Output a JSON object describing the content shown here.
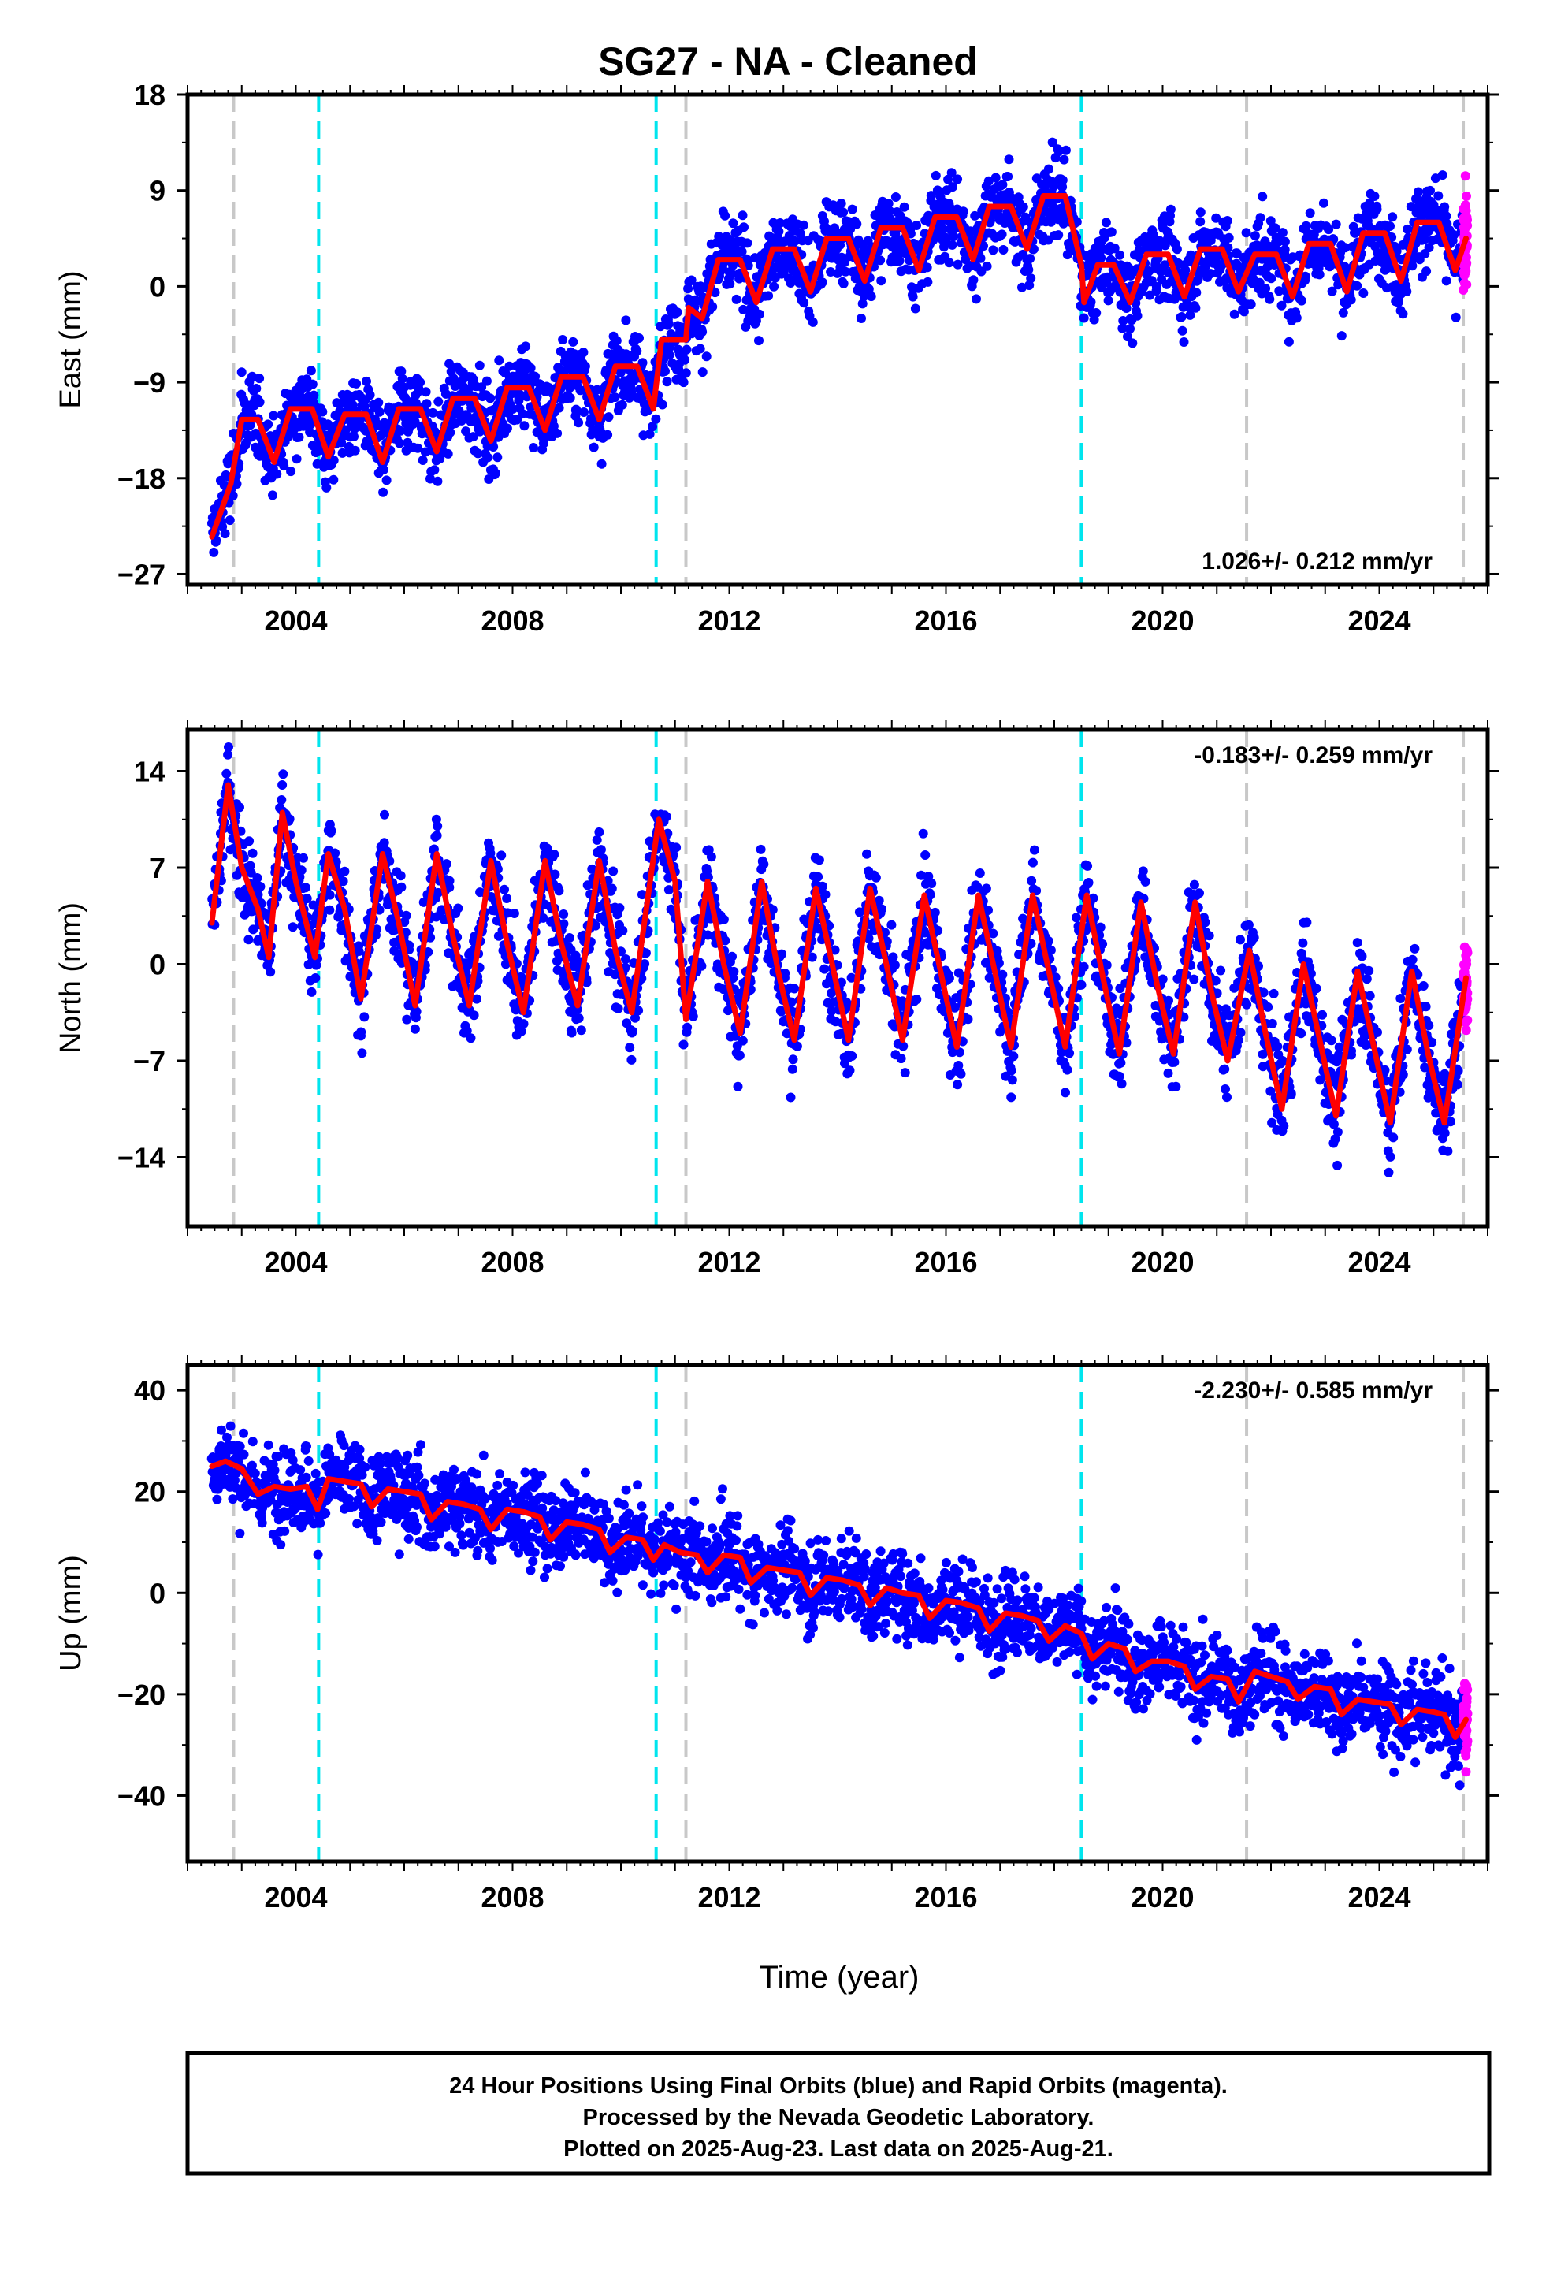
{
  "title": "SG27  - NA - Cleaned",
  "colors": {
    "final_orbits": "#0000ff",
    "rapid_orbits": "#ff00ff",
    "model": "#ff0000",
    "equipment_change": "#c8c8c8",
    "earthquake": "#00e5ee"
  },
  "chart_data": [
    {
      "type": "scatter",
      "ylabel": "East (mm)",
      "xlim": [
        2002.0,
        2026.0
      ],
      "ylim": [
        -28,
        18
      ],
      "yticks": [
        -27,
        -18,
        -9,
        0,
        9,
        18
      ],
      "xticks": [
        2004,
        2008,
        2012,
        2016,
        2020,
        2024
      ],
      "rate_text": "1.026+/- 0.212 mm/yr",
      "model_points": [
        [
          2002.45,
          -23.5
        ],
        [
          2002.8,
          -18.5
        ],
        [
          2003.0,
          -12.5
        ],
        [
          2003.3,
          -12.5
        ],
        [
          2003.6,
          -16.5
        ],
        [
          2003.9,
          -11.5
        ],
        [
          2004.3,
          -11.5
        ],
        [
          2004.6,
          -16.0
        ],
        [
          2004.9,
          -12.0
        ],
        [
          2005.3,
          -12.0
        ],
        [
          2005.6,
          -16.5
        ],
        [
          2005.9,
          -11.5
        ],
        [
          2006.3,
          -11.5
        ],
        [
          2006.6,
          -15.5
        ],
        [
          2006.9,
          -10.5
        ],
        [
          2007.3,
          -10.5
        ],
        [
          2007.6,
          -14.5
        ],
        [
          2007.9,
          -9.5
        ],
        [
          2008.3,
          -9.5
        ],
        [
          2008.6,
          -13.5
        ],
        [
          2008.9,
          -8.5
        ],
        [
          2009.3,
          -8.5
        ],
        [
          2009.6,
          -12.5
        ],
        [
          2009.9,
          -7.5
        ],
        [
          2010.3,
          -7.5
        ],
        [
          2010.6,
          -11.5
        ],
        [
          2010.75,
          -5.0
        ],
        [
          2011.2,
          -5.0
        ],
        [
          2011.25,
          -2.0
        ],
        [
          2011.5,
          -3.0
        ],
        [
          2011.8,
          2.5
        ],
        [
          2012.2,
          2.5
        ],
        [
          2012.5,
          -1.5
        ],
        [
          2012.8,
          3.5
        ],
        [
          2013.2,
          3.5
        ],
        [
          2013.5,
          -0.5
        ],
        [
          2013.8,
          4.5
        ],
        [
          2014.2,
          4.5
        ],
        [
          2014.5,
          0.5
        ],
        [
          2014.8,
          5.5
        ],
        [
          2015.2,
          5.5
        ],
        [
          2015.5,
          1.5
        ],
        [
          2015.8,
          6.5
        ],
        [
          2016.2,
          6.5
        ],
        [
          2016.5,
          2.5
        ],
        [
          2016.8,
          7.5
        ],
        [
          2017.2,
          7.5
        ],
        [
          2017.5,
          3.5
        ],
        [
          2017.8,
          8.5
        ],
        [
          2018.2,
          8.5
        ],
        [
          2018.5,
          2.0
        ],
        [
          2018.55,
          -1.5
        ],
        [
          2018.8,
          2.0
        ],
        [
          2019.1,
          2.0
        ],
        [
          2019.4,
          -1.5
        ],
        [
          2019.7,
          3.0
        ],
        [
          2020.1,
          3.0
        ],
        [
          2020.4,
          -1.0
        ],
        [
          2020.7,
          3.5
        ],
        [
          2021.1,
          3.5
        ],
        [
          2021.4,
          -0.5
        ],
        [
          2021.7,
          3.0
        ],
        [
          2022.1,
          3.0
        ],
        [
          2022.4,
          -1.0
        ],
        [
          2022.7,
          4.0
        ],
        [
          2023.1,
          4.0
        ],
        [
          2023.4,
          -0.5
        ],
        [
          2023.7,
          5.0
        ],
        [
          2024.1,
          5.0
        ],
        [
          2024.4,
          0.5
        ],
        [
          2024.7,
          6.0
        ],
        [
          2025.1,
          6.0
        ],
        [
          2025.4,
          1.5
        ],
        [
          2025.6,
          4.5
        ]
      ]
    },
    {
      "type": "scatter",
      "ylabel": "North (mm)",
      "xlim": [
        2002.0,
        2026.0
      ],
      "ylim": [
        -19,
        17
      ],
      "yticks": [
        -14,
        -7,
        0,
        7,
        14
      ],
      "xticks": [
        2004,
        2008,
        2012,
        2016,
        2020,
        2024
      ],
      "rate_text": "-0.183+/- 0.259 mm/yr",
      "model_points": [
        [
          2002.45,
          3.0
        ],
        [
          2002.75,
          13.0
        ],
        [
          2003.0,
          7.0
        ],
        [
          2003.3,
          4.0
        ],
        [
          2003.5,
          0.5
        ],
        [
          2003.75,
          11.0
        ],
        [
          2004.0,
          6.0
        ],
        [
          2004.35,
          0.5
        ],
        [
          2004.6,
          8.0
        ],
        [
          2004.9,
          4.0
        ],
        [
          2005.2,
          -2.5
        ],
        [
          2005.6,
          8.0
        ],
        [
          2005.9,
          3.0
        ],
        [
          2006.2,
          -3.0
        ],
        [
          2006.6,
          8.0
        ],
        [
          2006.9,
          2.0
        ],
        [
          2007.2,
          -3.0
        ],
        [
          2007.6,
          7.5
        ],
        [
          2007.9,
          1.5
        ],
        [
          2008.2,
          -3.5
        ],
        [
          2008.6,
          7.5
        ],
        [
          2008.9,
          1.5
        ],
        [
          2009.2,
          -3.0
        ],
        [
          2009.6,
          7.5
        ],
        [
          2009.9,
          1.0
        ],
        [
          2010.2,
          -3.5
        ],
        [
          2010.7,
          10.5
        ],
        [
          2011.0,
          6.0
        ],
        [
          2011.2,
          -4.0
        ],
        [
          2011.6,
          6.0
        ],
        [
          2011.9,
          0.0
        ],
        [
          2012.2,
          -5.0
        ],
        [
          2012.6,
          6.0
        ],
        [
          2012.9,
          -0.5
        ],
        [
          2013.2,
          -5.5
        ],
        [
          2013.6,
          5.5
        ],
        [
          2013.9,
          0.0
        ],
        [
          2014.2,
          -5.5
        ],
        [
          2014.6,
          5.5
        ],
        [
          2014.9,
          0.0
        ],
        [
          2015.2,
          -5.5
        ],
        [
          2015.6,
          5.0
        ],
        [
          2015.9,
          -0.5
        ],
        [
          2016.2,
          -6.0
        ],
        [
          2016.6,
          5.0
        ],
        [
          2016.9,
          -0.5
        ],
        [
          2017.2,
          -6.0
        ],
        [
          2017.6,
          5.0
        ],
        [
          2017.9,
          -0.5
        ],
        [
          2018.2,
          -6.0
        ],
        [
          2018.6,
          5.0
        ],
        [
          2018.9,
          -1.0
        ],
        [
          2019.2,
          -6.5
        ],
        [
          2019.6,
          4.5
        ],
        [
          2019.9,
          -1.5
        ],
        [
          2020.2,
          -6.5
        ],
        [
          2020.6,
          4.5
        ],
        [
          2020.9,
          -2.0
        ],
        [
          2021.2,
          -7.0
        ],
        [
          2021.6,
          1.0
        ],
        [
          2021.9,
          -5.0
        ],
        [
          2022.2,
          -10.5
        ],
        [
          2022.6,
          0.0
        ],
        [
          2022.9,
          -5.5
        ],
        [
          2023.2,
          -11.0
        ],
        [
          2023.6,
          -0.5
        ],
        [
          2023.9,
          -6.0
        ],
        [
          2024.2,
          -11.5
        ],
        [
          2024.6,
          -0.5
        ],
        [
          2024.9,
          -6.5
        ],
        [
          2025.2,
          -11.5
        ],
        [
          2025.6,
          -1.0
        ]
      ]
    },
    {
      "type": "scatter",
      "ylabel": "Up (mm)",
      "xlabel": "Time (year)",
      "xlim": [
        2002.0,
        2026.0
      ],
      "ylim": [
        -53,
        45
      ],
      "yticks": [
        -40,
        -20,
        0,
        20,
        40
      ],
      "xticks": [
        2004,
        2008,
        2012,
        2016,
        2020,
        2024
      ],
      "rate_text": "-2.230+/- 0.585 mm/yr",
      "model_points": [
        [
          2002.45,
          25.0
        ],
        [
          2002.7,
          26.0
        ],
        [
          2003.0,
          24.5
        ],
        [
          2003.3,
          19.5
        ],
        [
          2003.6,
          21.0
        ],
        [
          2003.9,
          20.5
        ],
        [
          2004.2,
          21.0
        ],
        [
          2004.4,
          16.5
        ],
        [
          2004.6,
          22.5
        ],
        [
          2004.9,
          22.0
        ],
        [
          2005.2,
          21.5
        ],
        [
          2005.4,
          17.0
        ],
        [
          2005.7,
          20.5
        ],
        [
          2006.0,
          20.0
        ],
        [
          2006.3,
          19.5
        ],
        [
          2006.5,
          14.5
        ],
        [
          2006.8,
          18.0
        ],
        [
          2007.1,
          17.5
        ],
        [
          2007.4,
          16.5
        ],
        [
          2007.6,
          12.5
        ],
        [
          2007.9,
          16.5
        ],
        [
          2008.2,
          16.0
        ],
        [
          2008.5,
          15.0
        ],
        [
          2008.7,
          10.5
        ],
        [
          2009.0,
          14.0
        ],
        [
          2009.3,
          13.5
        ],
        [
          2009.6,
          12.5
        ],
        [
          2009.8,
          8.0
        ],
        [
          2010.1,
          11.0
        ],
        [
          2010.4,
          10.5
        ],
        [
          2010.6,
          6.5
        ],
        [
          2010.8,
          9.5
        ],
        [
          2011.1,
          8.0
        ],
        [
          2011.4,
          7.5
        ],
        [
          2011.6,
          4.0
        ],
        [
          2011.9,
          7.5
        ],
        [
          2012.2,
          7.0
        ],
        [
          2012.4,
          2.0
        ],
        [
          2012.7,
          5.0
        ],
        [
          2013.0,
          4.5
        ],
        [
          2013.3,
          4.0
        ],
        [
          2013.5,
          -0.5
        ],
        [
          2013.8,
          3.0
        ],
        [
          2014.1,
          2.5
        ],
        [
          2014.4,
          1.5
        ],
        [
          2014.6,
          -2.5
        ],
        [
          2014.9,
          1.0
        ],
        [
          2015.2,
          0.0
        ],
        [
          2015.5,
          -0.5
        ],
        [
          2015.7,
          -5.0
        ],
        [
          2016.0,
          -1.5
        ],
        [
          2016.3,
          -2.0
        ],
        [
          2016.6,
          -3.0
        ],
        [
          2016.8,
          -7.5
        ],
        [
          2017.1,
          -4.0
        ],
        [
          2017.4,
          -4.5
        ],
        [
          2017.7,
          -5.5
        ],
        [
          2017.9,
          -9.5
        ],
        [
          2018.2,
          -6.5
        ],
        [
          2018.5,
          -8.0
        ],
        [
          2018.7,
          -13.0
        ],
        [
          2019.0,
          -10.0
        ],
        [
          2019.3,
          -11.0
        ],
        [
          2019.5,
          -15.5
        ],
        [
          2019.8,
          -13.5
        ],
        [
          2020.1,
          -13.5
        ],
        [
          2020.4,
          -14.5
        ],
        [
          2020.6,
          -19.0
        ],
        [
          2020.9,
          -16.5
        ],
        [
          2021.2,
          -17.0
        ],
        [
          2021.4,
          -21.5
        ],
        [
          2021.7,
          -15.5
        ],
        [
          2022.0,
          -16.5
        ],
        [
          2022.3,
          -17.5
        ],
        [
          2022.5,
          -21.0
        ],
        [
          2022.8,
          -18.5
        ],
        [
          2023.1,
          -19.0
        ],
        [
          2023.3,
          -24.0
        ],
        [
          2023.6,
          -21.0
        ],
        [
          2023.9,
          -21.5
        ],
        [
          2024.2,
          -22.0
        ],
        [
          2024.4,
          -26.0
        ],
        [
          2024.7,
          -23.0
        ],
        [
          2025.0,
          -23.5
        ],
        [
          2025.2,
          -24.0
        ],
        [
          2025.4,
          -28.5
        ],
        [
          2025.6,
          -25.0
        ]
      ]
    }
  ],
  "event_lines": {
    "equipment_change": [
      2002.85,
      2011.2,
      2021.55,
      2025.55
    ],
    "earthquake": [
      2004.42,
      2010.65,
      2018.5
    ]
  },
  "footer": {
    "line1": "24 Hour Positions Using Final Orbits (blue) and Rapid Orbits (magenta).",
    "line2": "Processed by the Nevada Geodetic Laboratory.",
    "line3": "Plotted on 2025-Aug-23. Last data on 2025-Aug-21."
  }
}
